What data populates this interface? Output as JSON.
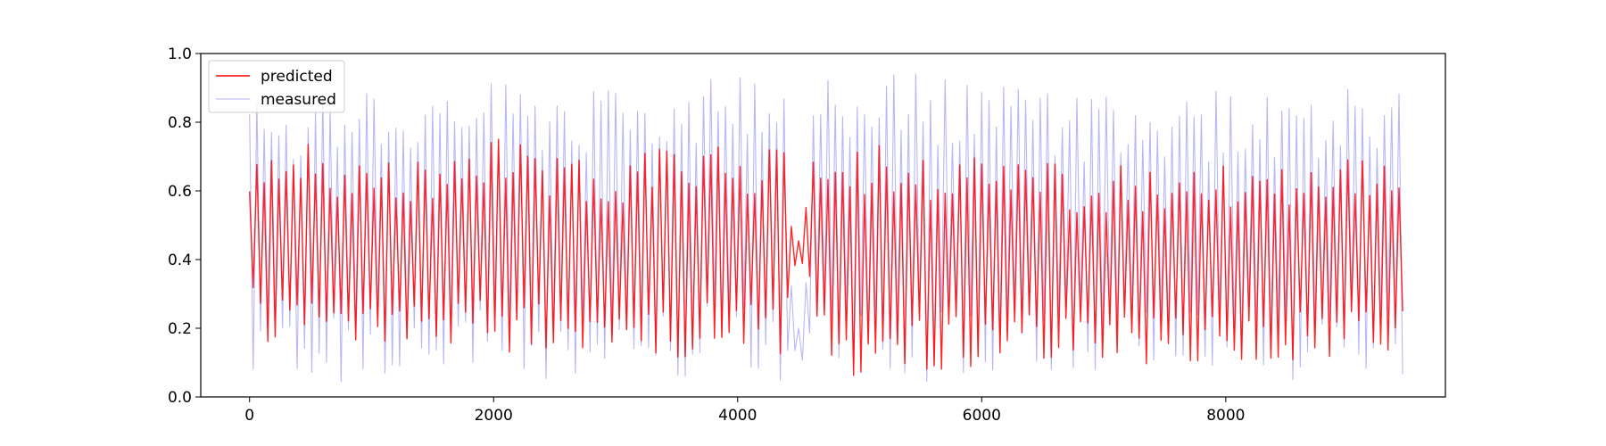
{
  "chart_data": {
    "type": "line",
    "title": "",
    "xlabel": "",
    "ylabel": "",
    "xlim": [
      -400,
      9800
    ],
    "ylim": [
      0.0,
      1.0
    ],
    "x_ticks": [
      0,
      2000,
      4000,
      6000,
      8000
    ],
    "x_tick_labels": [
      "0",
      "2000",
      "4000",
      "6000",
      "8000"
    ],
    "y_ticks": [
      0.0,
      0.2,
      0.4,
      0.6,
      0.8,
      1.0
    ],
    "y_tick_labels": [
      "0.0",
      "0.2",
      "0.4",
      "0.6",
      "0.8",
      "1.0"
    ],
    "grid": false,
    "legend": {
      "placement": "upper-left",
      "entries": [
        {
          "label": "predicted",
          "color": "#ff0000"
        },
        {
          "label": "measured",
          "color": "#b3b3f7"
        }
      ]
    },
    "series": [
      {
        "name": "measured",
        "color": "#b3b3f7",
        "x_range": [
          0,
          9460
        ],
        "cycle_length": 60,
        "oscillation_envelope": {
          "x": [
            0,
            300,
            900,
            1300,
            1900,
            2500,
            3000,
            3500,
            4100,
            4380,
            4450,
            4500,
            4560,
            4620,
            5000,
            5500,
            6000,
            6500,
            7000,
            7500,
            8000,
            8500,
            9000,
            9460
          ],
          "low": [
            0.05,
            0.04,
            0.04,
            0.05,
            0.04,
            0.04,
            0.05,
            0.04,
            0.05,
            0.04,
            0.12,
            0.04,
            0.05,
            0.08,
            0.04,
            0.04,
            0.05,
            0.05,
            0.06,
            0.06,
            0.05,
            0.05,
            0.05,
            0.05
          ],
          "high": [
            0.88,
            0.9,
            0.9,
            0.88,
            0.92,
            0.93,
            0.9,
            0.95,
            0.93,
            0.97,
            0.3,
            0.25,
            0.4,
            0.92,
            0.95,
            0.94,
            0.93,
            0.9,
            0.88,
            0.88,
            0.9,
            0.9,
            0.9,
            0.88
          ]
        }
      },
      {
        "name": "predicted",
        "color": "#ff0000",
        "x_range": [
          0,
          9460
        ],
        "cycle_length": 60,
        "oscillation_envelope": {
          "x": [
            0,
            300,
            900,
            1300,
            1900,
            2500,
            3000,
            3500,
            4100,
            4380,
            4450,
            4500,
            4560,
            4620,
            5000,
            5500,
            6000,
            6500,
            7000,
            7500,
            8000,
            8500,
            9000,
            9460
          ],
          "low": [
            0.2,
            0.12,
            0.14,
            0.16,
            0.12,
            0.12,
            0.14,
            0.1,
            0.16,
            0.12,
            0.38,
            0.36,
            0.4,
            0.18,
            0.03,
            0.08,
            0.08,
            0.1,
            0.08,
            0.1,
            0.1,
            0.1,
            0.1,
            0.12
          ],
          "high": [
            0.7,
            0.75,
            0.7,
            0.68,
            0.78,
            0.72,
            0.7,
            0.74,
            0.72,
            0.72,
            0.5,
            0.48,
            0.56,
            0.7,
            0.74,
            0.72,
            0.7,
            0.68,
            0.68,
            0.66,
            0.68,
            0.7,
            0.7,
            0.68
          ]
        }
      }
    ]
  }
}
